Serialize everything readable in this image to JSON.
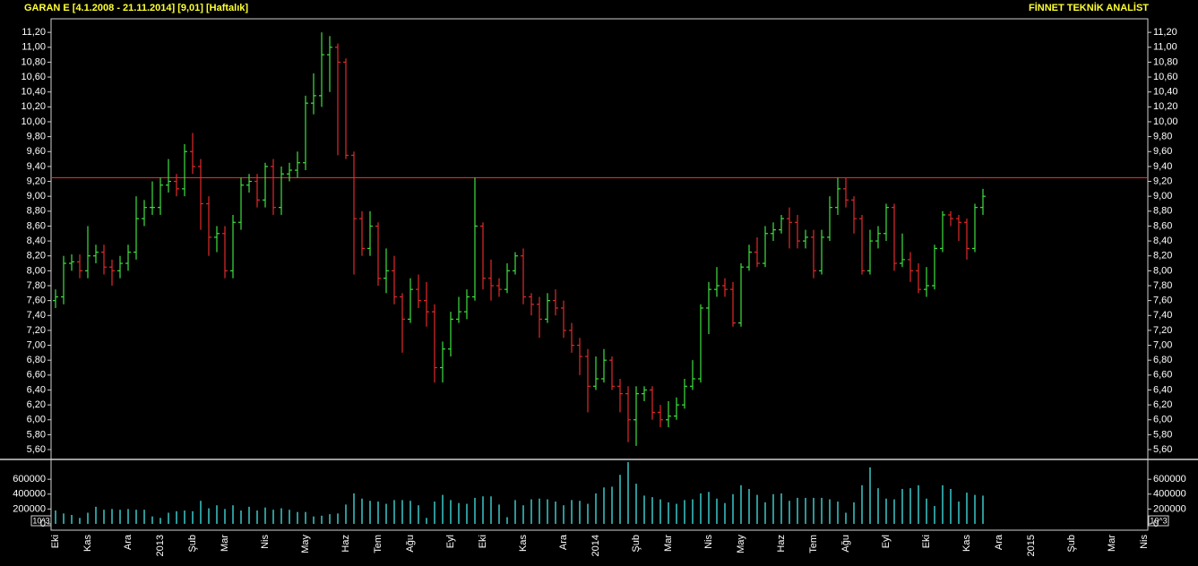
{
  "chart_data": [
    {
      "type": "ohlc",
      "title": "GARAN E  [4.1.2008 - 21.11.2014]  [9,01]  [Haftalık]",
      "brand": "FİNNET TEKNİK ANALİST",
      "up_color": "#3fe03f",
      "down_color": "#e02a2a",
      "reference_line": {
        "value": 9.25,
        "color": "#ff3030"
      },
      "categories": [
        "Eki",
        null,
        null,
        null,
        "Kas",
        null,
        null,
        null,
        null,
        "Ara",
        null,
        null,
        null,
        "2013",
        null,
        null,
        null,
        "Şub",
        null,
        null,
        null,
        "Mar",
        null,
        null,
        null,
        null,
        "Nis",
        null,
        null,
        null,
        null,
        "May",
        null,
        null,
        null,
        null,
        "Haz",
        null,
        null,
        null,
        "Tem",
        null,
        null,
        null,
        "Ağu",
        null,
        null,
        null,
        null,
        "Eyl",
        null,
        null,
        null,
        "Eki",
        null,
        null,
        null,
        null,
        "Kas",
        null,
        null,
        null,
        null,
        "Ara",
        null,
        null,
        null,
        "2014",
        null,
        null,
        null,
        null,
        "Şub",
        null,
        null,
        null,
        "Mar",
        null,
        null,
        null,
        null,
        "Nis",
        null,
        null,
        null,
        "May",
        null,
        null,
        null,
        null,
        "Haz",
        null,
        null,
        null,
        "Tem",
        null,
        null,
        null,
        "Ağu",
        null,
        null,
        null,
        null,
        "Eyl",
        null,
        null,
        null,
        null,
        "Eki",
        null,
        null,
        null,
        null,
        "Kas",
        null,
        null,
        null,
        "Ara",
        null,
        null,
        null,
        "2015",
        null,
        null,
        null,
        null,
        "Şub",
        null,
        null,
        null,
        null,
        "Mar",
        null,
        null,
        null,
        "Nis"
      ],
      "open": [
        7.6,
        7.65,
        8.1,
        8.12,
        8.0,
        8.2,
        8.25,
        8.05,
        8.0,
        8.1,
        8.25,
        8.7,
        8.85,
        8.85,
        9.15,
        9.2,
        9.1,
        9.6,
        9.4,
        8.9,
        8.45,
        8.5,
        8.0,
        8.65,
        9.15,
        9.2,
        8.95,
        9.4,
        8.85,
        9.3,
        9.35,
        9.45,
        10.25,
        10.35,
        10.9,
        11.0,
        10.8,
        9.55,
        8.7,
        8.3,
        8.6,
        7.9,
        8.0,
        7.65,
        7.35,
        7.75,
        7.6,
        7.45,
        6.7,
        6.95,
        7.35,
        7.45,
        7.65,
        8.6,
        7.9,
        7.8,
        7.75,
        8.0,
        8.2,
        7.65,
        7.55,
        7.35,
        7.6,
        7.5,
        7.2,
        7.0,
        6.85,
        6.45,
        6.55,
        6.8,
        6.45,
        6.35,
        6.0,
        6.35,
        6.4,
        6.1,
        6.0,
        6.05,
        6.2,
        6.45,
        6.55,
        7.5,
        7.75,
        7.8,
        7.75,
        7.3,
        8.05,
        8.25,
        8.1,
        8.5,
        8.55,
        8.7,
        8.65,
        8.4,
        8.45,
        8.0,
        8.45,
        8.85,
        9.1,
        8.95,
        8.7,
        8.0,
        8.4,
        8.5,
        8.85,
        8.1,
        8.15,
        8.0,
        7.75,
        7.8,
        8.3,
        8.75,
        8.7,
        8.65,
        8.3,
        8.85,
        null,
        null,
        null,
        null,
        null,
        null,
        null,
        null,
        null,
        null,
        null,
        null,
        null,
        null,
        null,
        null,
        null,
        null,
        null,
        null
      ],
      "high": [
        7.75,
        8.2,
        8.22,
        8.22,
        8.6,
        8.35,
        8.35,
        8.15,
        8.2,
        8.35,
        9.0,
        8.95,
        9.2,
        9.25,
        9.5,
        9.3,
        9.7,
        9.85,
        9.5,
        9.0,
        8.6,
        8.6,
        8.75,
        9.25,
        9.3,
        9.3,
        9.45,
        9.5,
        9.4,
        9.45,
        9.6,
        10.35,
        10.65,
        11.2,
        11.15,
        11.05,
        10.85,
        9.6,
        8.8,
        8.8,
        8.65,
        8.3,
        8.2,
        7.7,
        7.9,
        7.95,
        7.85,
        7.55,
        7.05,
        7.45,
        7.65,
        7.75,
        9.25,
        8.65,
        8.15,
        7.9,
        8.1,
        8.25,
        8.3,
        7.7,
        7.65,
        7.7,
        7.75,
        7.6,
        7.3,
        7.1,
        6.95,
        6.85,
        6.95,
        6.85,
        6.55,
        6.45,
        6.45,
        6.45,
        6.45,
        6.2,
        6.25,
        6.3,
        6.55,
        6.8,
        7.55,
        7.85,
        8.05,
        7.9,
        7.85,
        8.1,
        8.35,
        8.45,
        8.6,
        8.65,
        8.75,
        8.85,
        8.75,
        8.55,
        8.55,
        8.55,
        9.0,
        9.25,
        9.25,
        9.0,
        8.75,
        8.55,
        8.6,
        8.9,
        8.9,
        8.5,
        8.25,
        8.1,
        8.05,
        8.35,
        8.8,
        8.8,
        8.75,
        8.7,
        8.9,
        9.1,
        null,
        null,
        null,
        null,
        null,
        null,
        null,
        null,
        null,
        null,
        null,
        null,
        null,
        null,
        null,
        null,
        null,
        null,
        null,
        null
      ],
      "low": [
        7.5,
        7.55,
        8.0,
        7.9,
        7.9,
        8.1,
        7.95,
        7.8,
        7.9,
        8.0,
        8.15,
        8.6,
        8.75,
        8.75,
        9.05,
        9.0,
        9.0,
        9.3,
        8.55,
        8.2,
        8.25,
        7.9,
        7.9,
        8.55,
        9.05,
        8.85,
        8.85,
        8.75,
        8.75,
        9.2,
        9.25,
        9.35,
        10.1,
        10.2,
        10.4,
        9.55,
        9.5,
        7.95,
        8.2,
        8.2,
        7.8,
        7.7,
        7.55,
        6.9,
        7.3,
        7.5,
        7.25,
        6.5,
        6.5,
        6.85,
        7.3,
        7.35,
        7.6,
        7.75,
        7.6,
        7.65,
        7.7,
        7.95,
        7.55,
        7.4,
        7.1,
        7.3,
        7.4,
        7.1,
        6.9,
        6.6,
        6.1,
        6.4,
        6.5,
        6.4,
        6.1,
        5.7,
        5.65,
        6.25,
        6.0,
        5.9,
        5.9,
        6.0,
        6.15,
        6.4,
        6.5,
        7.15,
        7.65,
        7.65,
        7.25,
        7.25,
        8.0,
        8.05,
        8.05,
        8.4,
        8.5,
        8.3,
        8.3,
        8.3,
        7.9,
        7.95,
        8.4,
        8.75,
        8.85,
        8.5,
        7.95,
        7.95,
        8.3,
        8.4,
        8.0,
        8.05,
        7.85,
        7.7,
        7.65,
        7.75,
        8.25,
        8.6,
        8.4,
        8.15,
        8.25,
        8.75,
        null,
        null,
        null,
        null,
        null,
        null,
        null,
        null,
        null,
        null,
        null,
        null,
        null,
        null,
        null,
        null,
        null,
        null,
        null,
        null
      ],
      "close": [
        7.65,
        8.1,
        8.12,
        8.0,
        8.2,
        8.25,
        8.05,
        8.0,
        8.1,
        8.25,
        8.7,
        8.85,
        8.85,
        9.15,
        9.2,
        9.1,
        9.6,
        9.4,
        8.9,
        8.45,
        8.5,
        8.0,
        8.65,
        9.15,
        9.2,
        8.95,
        9.4,
        8.85,
        9.3,
        9.35,
        9.45,
        10.25,
        10.35,
        10.9,
        11.0,
        10.8,
        9.55,
        8.7,
        8.3,
        8.6,
        7.9,
        8.0,
        7.65,
        7.35,
        7.75,
        7.6,
        7.45,
        6.7,
        6.95,
        7.35,
        7.45,
        7.65,
        8.6,
        7.9,
        7.8,
        7.75,
        8.0,
        8.2,
        7.65,
        7.55,
        7.35,
        7.6,
        7.5,
        7.2,
        7.0,
        6.85,
        6.45,
        6.55,
        6.8,
        6.45,
        6.35,
        6.0,
        6.35,
        6.4,
        6.1,
        6.0,
        6.05,
        6.2,
        6.45,
        6.55,
        7.5,
        7.75,
        7.8,
        7.75,
        7.3,
        8.05,
        8.25,
        8.1,
        8.5,
        8.55,
        8.7,
        8.65,
        8.4,
        8.45,
        8.0,
        8.45,
        8.85,
        9.1,
        8.95,
        8.7,
        8.0,
        8.4,
        8.5,
        8.85,
        8.1,
        8.15,
        8.0,
        7.75,
        7.8,
        8.3,
        8.75,
        8.7,
        8.65,
        8.3,
        8.85,
        9.0,
        null,
        null,
        null,
        null,
        null,
        null,
        null,
        null,
        null,
        null,
        null,
        null,
        null,
        null,
        null,
        null,
        null,
        null,
        null,
        null
      ],
      "ylim": [
        5.48,
        11.37
      ],
      "yticks": [
        {
          "value": 5.6,
          "label": "5,60"
        },
        {
          "value": 5.8,
          "label": "5,80"
        },
        {
          "value": 6.0,
          "label": "6,00"
        },
        {
          "value": 6.2,
          "label": "6,20"
        },
        {
          "value": 6.4,
          "label": "6,40"
        },
        {
          "value": 6.6,
          "label": "6,60"
        },
        {
          "value": 6.8,
          "label": "6,80"
        },
        {
          "value": 7.0,
          "label": "7,00"
        },
        {
          "value": 7.2,
          "label": "7,20"
        },
        {
          "value": 7.4,
          "label": "7,40"
        },
        {
          "value": 7.6,
          "label": "7,60"
        },
        {
          "value": 7.8,
          "label": "7,80"
        },
        {
          "value": 8.0,
          "label": "8,00"
        },
        {
          "value": 8.2,
          "label": "8,20"
        },
        {
          "value": 8.4,
          "label": "8,40"
        },
        {
          "value": 8.6,
          "label": "8,60"
        },
        {
          "value": 8.8,
          "label": "8,80"
        },
        {
          "value": 9.0,
          "label": "9,00"
        },
        {
          "value": 9.2,
          "label": "9,20"
        },
        {
          "value": 9.4,
          "label": "9,40"
        },
        {
          "value": 9.6,
          "label": "9,60"
        },
        {
          "value": 9.8,
          "label": "9,80"
        },
        {
          "value": 10.0,
          "label": "10,00"
        },
        {
          "value": 10.2,
          "label": "10,20"
        },
        {
          "value": 10.4,
          "label": "10,40"
        },
        {
          "value": 10.6,
          "label": "10,60"
        },
        {
          "value": 10.8,
          "label": "10,80"
        },
        {
          "value": 11.0,
          "label": "11,00"
        },
        {
          "value": 11.2,
          "label": "11,20"
        }
      ]
    },
    {
      "type": "bar",
      "color": "#3cc8c8",
      "unit_label": "10^3",
      "values": [
        180000,
        140000,
        120000,
        80000,
        150000,
        230000,
        190000,
        200000,
        190000,
        200000,
        190000,
        190000,
        100000,
        80000,
        150000,
        170000,
        180000,
        170000,
        310000,
        210000,
        250000,
        200000,
        250000,
        180000,
        230000,
        180000,
        220000,
        190000,
        210000,
        190000,
        160000,
        160000,
        100000,
        110000,
        130000,
        140000,
        260000,
        410000,
        340000,
        310000,
        300000,
        270000,
        320000,
        320000,
        310000,
        250000,
        80000,
        300000,
        390000,
        320000,
        280000,
        270000,
        350000,
        370000,
        370000,
        260000,
        90000,
        320000,
        250000,
        330000,
        340000,
        330000,
        300000,
        250000,
        320000,
        310000,
        270000,
        410000,
        490000,
        500000,
        660000,
        830000,
        540000,
        380000,
        360000,
        330000,
        290000,
        270000,
        320000,
        330000,
        410000,
        430000,
        340000,
        280000,
        400000,
        520000,
        470000,
        390000,
        290000,
        400000,
        410000,
        310000,
        350000,
        350000,
        350000,
        350000,
        330000,
        300000,
        150000,
        290000,
        520000,
        760000,
        480000,
        340000,
        330000,
        470000,
        480000,
        520000,
        340000,
        240000,
        520000,
        470000,
        300000,
        420000,
        390000,
        380000,
        null,
        null,
        null,
        null,
        null,
        null,
        null,
        null,
        null,
        null,
        null,
        null,
        null,
        null,
        null,
        null,
        null,
        null,
        null,
        null
      ],
      "ylim": [
        -85000,
        855000
      ],
      "yticks": [
        0,
        200000,
        400000,
        600000
      ]
    }
  ]
}
